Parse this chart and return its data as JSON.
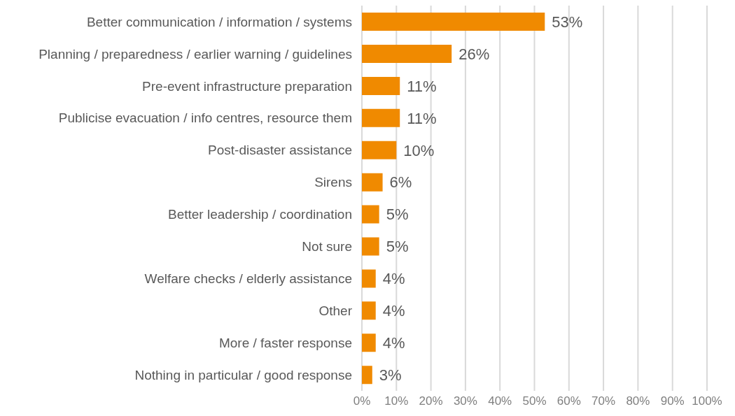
{
  "chart_data": {
    "type": "bar",
    "orientation": "horizontal",
    "categories": [
      "Better communication / information / systems",
      "Planning / preparedness / earlier warning / guidelines",
      "Pre-event infrastructure preparation",
      "Publicise evacuation / info centres, resource them",
      "Post-disaster assistance",
      "Sirens",
      "Better leadership / coordination",
      "Not sure",
      "Welfare checks / elderly assistance",
      "Other",
      "More / faster response",
      "Nothing in particular / good response"
    ],
    "values": [
      53,
      26,
      11,
      11,
      10,
      6,
      5,
      5,
      4,
      4,
      4,
      3
    ],
    "value_labels": [
      "53%",
      "26%",
      "11%",
      "11%",
      "10%",
      "6%",
      "5%",
      "5%",
      "4%",
      "4%",
      "4%",
      "3%"
    ],
    "color": "#f08a00",
    "xlim": [
      0,
      100
    ],
    "xticks": [
      {
        "value": 0,
        "label": "0%"
      },
      {
        "value": 10,
        "label": "10%"
      },
      {
        "value": 20,
        "label": "20%"
      },
      {
        "value": 30,
        "label": "30%"
      },
      {
        "value": 40,
        "label": "40%"
      },
      {
        "value": 50,
        "label": "50%"
      },
      {
        "value": 60,
        "label": "60%"
      },
      {
        "value": 70,
        "label": "70%"
      },
      {
        "value": 80,
        "label": "80%"
      },
      {
        "value": 90,
        "label": "90%"
      },
      {
        "value": 100,
        "label": "100%"
      }
    ],
    "grid": "x"
  }
}
